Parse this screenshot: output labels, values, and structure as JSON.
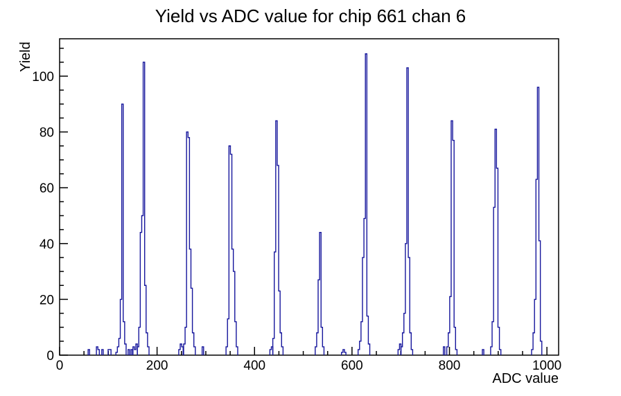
{
  "chart_data": {
    "type": "bar",
    "subtype": "root-histogram-outline",
    "title": "Yield vs ADC value for chip 661 chan 6",
    "xlabel": "ADC value",
    "ylabel": "Yield",
    "xlim": [
      0,
      1024
    ],
    "ylim": [
      0,
      113.4
    ],
    "x_major_ticks": [
      0,
      200,
      400,
      600,
      800,
      1000
    ],
    "x_minor_step": 50,
    "y_major_ticks": [
      0,
      20,
      40,
      60,
      80,
      100
    ],
    "y_minor_step": 5,
    "grid": "off",
    "legend": "none",
    "line_color": "#15159c",
    "frame_color": "#000000",
    "background_color": "#ffffff",
    "bin_width_adc": 3,
    "main_peaks": [
      {
        "adc": 129,
        "yield": 90
      },
      {
        "adc": 173,
        "yield": 105
      },
      {
        "adc": 262,
        "yield": 80
      },
      {
        "adc": 349,
        "yield": 75
      },
      {
        "adc": 445,
        "yield": 84
      },
      {
        "adc": 535,
        "yield": 44
      },
      {
        "adc": 629,
        "yield": 108
      },
      {
        "adc": 714,
        "yield": 103
      },
      {
        "adc": 805,
        "yield": 84
      },
      {
        "adc": 895,
        "yield": 81
      },
      {
        "adc": 982,
        "yield": 96
      }
    ],
    "clusters": [
      [
        [
          60,
          2
        ]
      ],
      [
        [
          77,
          3
        ],
        [
          80,
          2
        ]
      ],
      [
        [
          88,
          2
        ]
      ],
      [
        [
          101,
          2
        ],
        [
          104,
          2
        ]
      ],
      [
        [
          117,
          1
        ],
        [
          120,
          3
        ],
        [
          123,
          6
        ],
        [
          126,
          20
        ],
        [
          129,
          90
        ],
        [
          132,
          12
        ],
        [
          135,
          4
        ]
      ],
      [
        [
          142,
          2
        ]
      ],
      [
        [
          148,
          2
        ]
      ],
      [
        [
          152,
          3
        ],
        [
          155,
          2
        ],
        [
          158,
          4
        ]
      ],
      [
        [
          161,
          3
        ],
        [
          164,
          10
        ],
        [
          167,
          44
        ],
        [
          170,
          50
        ],
        [
          173,
          105
        ],
        [
          176,
          25
        ],
        [
          179,
          8
        ],
        [
          182,
          3
        ]
      ],
      [
        [
          246,
          2
        ],
        [
          249,
          4
        ],
        [
          252,
          3
        ]
      ],
      [
        [
          256,
          4
        ],
        [
          259,
          10
        ],
        [
          262,
          80
        ],
        [
          265,
          78
        ],
        [
          268,
          38
        ],
        [
          271,
          24
        ],
        [
          274,
          8
        ],
        [
          277,
          3
        ]
      ],
      [
        [
          294,
          3
        ]
      ],
      [
        [
          343,
          3
        ],
        [
          346,
          13
        ],
        [
          349,
          75
        ],
        [
          352,
          72
        ],
        [
          355,
          38
        ],
        [
          358,
          30
        ],
        [
          361,
          12
        ],
        [
          364,
          3
        ]
      ],
      [
        [
          433,
          2
        ],
        [
          436,
          3
        ]
      ],
      [
        [
          439,
          6
        ],
        [
          442,
          37
        ],
        [
          445,
          84
        ],
        [
          448,
          68
        ],
        [
          451,
          23
        ],
        [
          454,
          8
        ],
        [
          457,
          3
        ]
      ],
      [
        [
          526,
          3
        ],
        [
          529,
          8
        ],
        [
          532,
          27
        ],
        [
          535,
          44
        ],
        [
          538,
          10
        ],
        [
          541,
          3
        ]
      ],
      [
        [
          580,
          1
        ],
        [
          583,
          2
        ],
        [
          586,
          1
        ]
      ],
      [
        [
          614,
          2
        ],
        [
          617,
          5
        ],
        [
          620,
          12
        ],
        [
          623,
          35
        ],
        [
          626,
          49
        ],
        [
          629,
          108
        ],
        [
          632,
          14
        ],
        [
          635,
          4
        ]
      ],
      [
        [
          696,
          2
        ],
        [
          699,
          4
        ]
      ],
      [
        [
          702,
          3
        ],
        [
          705,
          8
        ],
        [
          708,
          15
        ],
        [
          711,
          40
        ],
        [
          714,
          103
        ],
        [
          717,
          35
        ],
        [
          720,
          8
        ],
        [
          723,
          2
        ]
      ],
      [
        [
          789,
          3
        ]
      ],
      [
        [
          796,
          3
        ],
        [
          799,
          8
        ],
        [
          802,
          21
        ],
        [
          805,
          84
        ],
        [
          808,
          77
        ],
        [
          811,
          10
        ],
        [
          814,
          2
        ]
      ],
      [
        [
          869,
          2
        ]
      ],
      [
        [
          886,
          3
        ],
        [
          889,
          12
        ],
        [
          892,
          53
        ],
        [
          895,
          81
        ],
        [
          898,
          67
        ],
        [
          901,
          10
        ],
        [
          904,
          2
        ]
      ],
      [
        [
          970,
          2
        ],
        [
          973,
          8
        ],
        [
          976,
          20
        ],
        [
          979,
          63
        ],
        [
          982,
          96
        ],
        [
          985,
          41
        ],
        [
          988,
          5
        ]
      ]
    ]
  }
}
